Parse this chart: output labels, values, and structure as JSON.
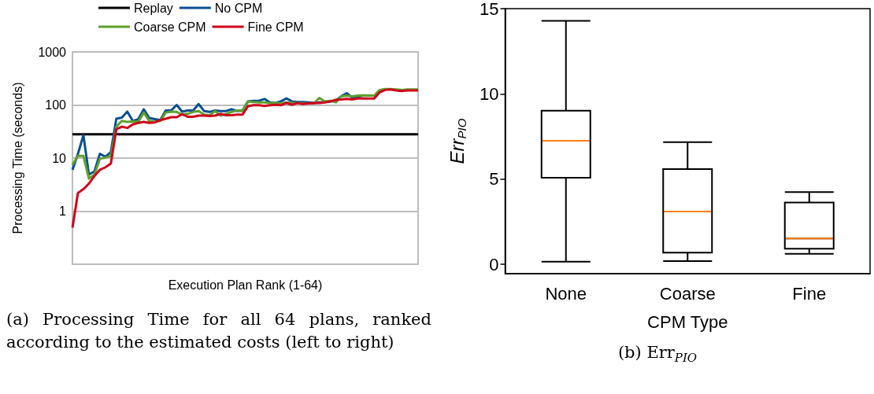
{
  "chart_data": [
    {
      "type": "line",
      "xlabel": "Execution Plan Rank (1-64)",
      "ylabel": "Processing Time (seconds)",
      "log": "y",
      "ylim": [
        0.1,
        1000
      ],
      "yticks": [
        {
          "value": 0.1,
          "label": null
        },
        1,
        10,
        100,
        1000
      ],
      "grid": "y",
      "legend": "top",
      "marker": "none",
      "line_style": "solid",
      "categories": [
        null,
        null,
        null,
        null,
        null,
        null,
        null,
        null,
        null,
        null,
        null,
        null,
        null,
        null,
        null,
        null,
        null,
        null,
        null,
        null,
        null,
        null,
        null,
        null,
        null,
        null,
        null,
        null,
        null,
        null,
        null,
        null,
        null,
        null,
        null,
        null,
        null,
        null,
        null,
        null,
        null,
        null,
        null,
        null,
        null,
        null,
        null,
        null,
        null,
        null,
        null,
        null,
        null,
        null,
        null,
        null,
        null,
        null,
        null,
        null,
        null,
        null,
        null,
        null
      ],
      "series": [
        {
          "name": "Replay",
          "color": "#000000",
          "values": [
            28,
            28,
            28,
            28,
            28,
            28,
            28,
            28,
            28,
            28,
            28,
            28,
            28,
            28,
            28,
            28,
            28,
            28,
            28,
            28,
            28,
            28,
            28,
            28,
            28,
            28,
            28,
            28,
            28,
            28,
            28,
            28,
            28,
            28,
            28,
            28,
            28,
            28,
            28,
            28,
            28,
            28,
            28,
            28,
            28,
            28,
            28,
            28,
            28,
            28,
            28,
            28,
            28,
            28,
            28,
            28,
            28,
            28,
            28,
            28,
            28,
            28,
            28,
            28
          ]
        },
        {
          "name": "No CPM",
          "color": "#0b4f91",
          "values": [
            6,
            12,
            27,
            4.9,
            5.6,
            12,
            10.6,
            13,
            55,
            58,
            75,
            50,
            54,
            83,
            57,
            54,
            52,
            79,
            79,
            100,
            75,
            79,
            79,
            104,
            77,
            74,
            79,
            77,
            77,
            83,
            77,
            79,
            117,
            120,
            120,
            130,
            112,
            109,
            117,
            133,
            117,
            114,
            114,
            112,
            109,
            112,
            114,
            117,
            121,
            146,
            167,
            136,
            143,
            150,
            null,
            null,
            null,
            null,
            null,
            null,
            null,
            null,
            null,
            null
          ]
        },
        {
          "name": "Coarse CPM",
          "color": "#5ea02e",
          "values": [
            7.5,
            11,
            11,
            4.1,
            4.9,
            9.7,
            10.2,
            11,
            39,
            50,
            48,
            49,
            48,
            72,
            50,
            48,
            50,
            72,
            75,
            74,
            66,
            68,
            74,
            77,
            66,
            64,
            77,
            63,
            68,
            74,
            79,
            77,
            117,
            114,
            112,
            112,
            109,
            109,
            107,
            112,
            109,
            109,
            107,
            107,
            107,
            136,
            117,
            120,
            112,
            146,
            150,
            146,
            150,
            152,
            150,
            150,
            192,
            200,
            200,
            196,
            192,
            196,
            196,
            196
          ]
        },
        {
          "name": "Fine CPM",
          "color": "#d0021b",
          "values": [
            0.49,
            2.2,
            2.6,
            3.3,
            4.6,
            6,
            6.7,
            7.9,
            35,
            39,
            37,
            43,
            46,
            48,
            46,
            47,
            52,
            55,
            59,
            59,
            67,
            60,
            60,
            63,
            63,
            62,
            63,
            68,
            64,
            64,
            66,
            66,
            95,
            99,
            99,
            96,
            99,
            101,
            99,
            109,
            101,
            109,
            104,
            107,
            109,
            109,
            112,
            117,
            125,
            127,
            130,
            127,
            133,
            133,
            133,
            133,
            174,
            192,
            196,
            188,
            183,
            188,
            188,
            188
          ]
        }
      ],
      "annotations": [
        "(a) Processing Time for all 64 plans, ranked according to the estimated costs (left to right)"
      ]
    },
    {
      "type": "box",
      "xlabel": "CPM Type",
      "ylabel": "Err$_{PIO}$",
      "ylim": [
        -0.55,
        15
      ],
      "yticks": [
        0,
        5,
        10,
        15
      ],
      "grid": false,
      "categories": [
        "None",
        "Coarse",
        "Fine"
      ],
      "series": [
        {
          "color": "#000000",
          "boxes": [
            {
              "low": 0.15,
              "q1": 5.08,
              "median": 7.25,
              "q3": 9.01,
              "high": 14.28
            },
            {
              "low": 0.19,
              "q1": 0.68,
              "median": 3.1,
              "q3": 5.59,
              "high": 7.17
            },
            {
              "low": 0.62,
              "q1": 0.91,
              "median": 1.52,
              "q3": 3.63,
              "high": 4.24
            }
          ]
        }
      ],
      "annotations": [
        "(b) Err$_{PIO}$"
      ]
    }
  ]
}
